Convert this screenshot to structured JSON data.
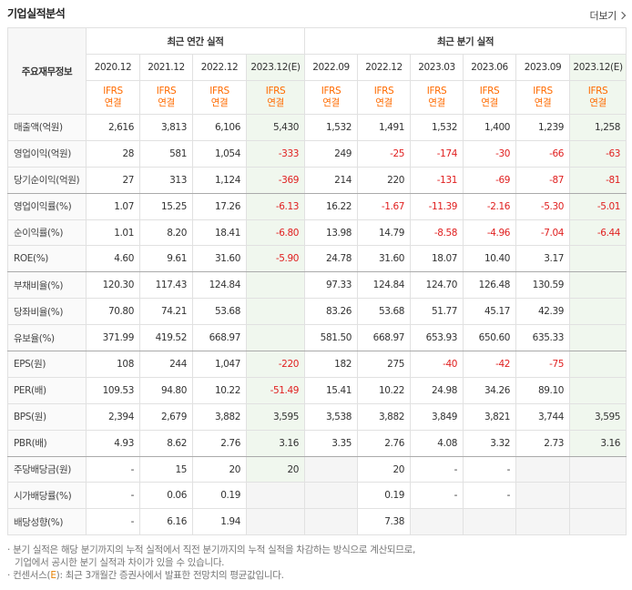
{
  "section_title": "기업실적분석",
  "more_link": "더보기",
  "header": {
    "row_label": "주요재무정보",
    "annual_group": "최근 연간 실적",
    "quarter_group": "최근 분기 실적",
    "annual_periods": [
      "2020.12",
      "2021.12",
      "2022.12",
      "2023.12(E)"
    ],
    "quarter_periods": [
      "2022.09",
      "2022.12",
      "2023.03",
      "2023.06",
      "2023.09",
      "2023.12(E)"
    ],
    "ifrs_top": "IFRS",
    "ifrs_bottom": "연결"
  },
  "rows": [
    {
      "label": "매출액(억원)",
      "values": [
        "2,616",
        "3,813",
        "6,106",
        "5,430",
        "1,532",
        "1,491",
        "1,532",
        "1,400",
        "1,239",
        "1,258"
      ]
    },
    {
      "label": "영업이익(억원)",
      "values": [
        "28",
        "581",
        "1,054",
        "-333",
        "249",
        "-25",
        "-174",
        "-30",
        "-66",
        "-63"
      ]
    },
    {
      "label": "당기순이익(억원)",
      "values": [
        "27",
        "313",
        "1,124",
        "-369",
        "214",
        "220",
        "-131",
        "-69",
        "-87",
        "-81"
      ]
    },
    {
      "label": "영업이익률(%)",
      "values": [
        "1.07",
        "15.25",
        "17.26",
        "-6.13",
        "16.22",
        "-1.67",
        "-11.39",
        "-2.16",
        "-5.30",
        "-5.01"
      ]
    },
    {
      "label": "순이익률(%)",
      "values": [
        "1.01",
        "8.20",
        "18.41",
        "-6.80",
        "13.98",
        "14.79",
        "-8.58",
        "-4.96",
        "-7.04",
        "-6.44"
      ]
    },
    {
      "label": "ROE(%)",
      "values": [
        "4.60",
        "9.61",
        "31.60",
        "-5.90",
        "24.78",
        "31.60",
        "18.07",
        "10.40",
        "3.17",
        ""
      ]
    },
    {
      "label": "부채비율(%)",
      "values": [
        "120.30",
        "117.43",
        "124.84",
        "",
        "97.33",
        "124.84",
        "124.70",
        "126.48",
        "130.59",
        ""
      ]
    },
    {
      "label": "당좌비율(%)",
      "values": [
        "70.80",
        "74.21",
        "53.68",
        "",
        "83.26",
        "53.68",
        "51.77",
        "45.17",
        "42.39",
        ""
      ]
    },
    {
      "label": "유보율(%)",
      "values": [
        "371.99",
        "419.52",
        "668.97",
        "",
        "581.50",
        "668.97",
        "653.93",
        "650.60",
        "635.33",
        ""
      ]
    },
    {
      "label": "EPS(원)",
      "values": [
        "108",
        "244",
        "1,047",
        "-220",
        "182",
        "275",
        "-40",
        "-42",
        "-75",
        ""
      ]
    },
    {
      "label": "PER(배)",
      "values": [
        "109.53",
        "94.80",
        "10.22",
        "-51.49",
        "15.41",
        "10.22",
        "24.98",
        "34.26",
        "89.10",
        ""
      ]
    },
    {
      "label": "BPS(원)",
      "values": [
        "2,394",
        "2,679",
        "3,882",
        "3,595",
        "3,538",
        "3,882",
        "3,849",
        "3,821",
        "3,744",
        "3,595"
      ]
    },
    {
      "label": "PBR(배)",
      "values": [
        "4.93",
        "8.62",
        "2.76",
        "3.16",
        "3.35",
        "2.76",
        "4.08",
        "3.32",
        "2.73",
        "3.16"
      ]
    },
    {
      "label": "주당배당금(원)",
      "values": [
        "-",
        "15",
        "20",
        "20",
        "",
        "20",
        "-",
        "-",
        "",
        ""
      ]
    },
    {
      "label": "시가배당률(%)",
      "values": [
        "-",
        "0.06",
        "0.19",
        "",
        "",
        "0.19",
        "-",
        "-",
        "",
        ""
      ]
    },
    {
      "label": "배당성향(%)",
      "values": [
        "-",
        "6.16",
        "1.94",
        "",
        "",
        "7.38",
        "",
        "",
        "",
        ""
      ]
    }
  ],
  "notes": {
    "line1": "· 분기 실적은 해당 분기까지의 누적 실적에서 직전 분기까지의 누적 실적을 차감하는 방식으로 계산되므로,",
    "line2": "기업에서 공시한 분기 실적과 차이가 있을 수 있습니다.",
    "line3_prefix": "· 컨센서스(",
    "line3_mark": "E",
    "line3_suffix": "): 최근 3개월간 증권사에서 발표한 전망치의 평균값입니다."
  },
  "colors": {
    "negative": "#e02020",
    "ifrs": "#ff6b00",
    "estimate_bg": "#f0f7ee",
    "empty_bg": "#f5f5f5"
  }
}
